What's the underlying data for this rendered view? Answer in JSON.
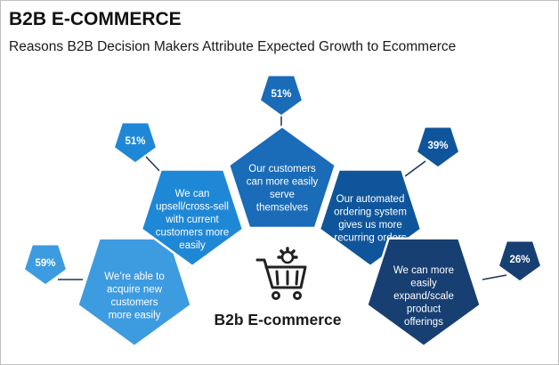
{
  "header": {
    "title": "B2B E-COMMERCE",
    "subtitle": "Reasons B2B Decision Makers Attribute Expected Growth to Ecommerce"
  },
  "center": {
    "label": "B2b E-commerce",
    "icon": "shopping-cart-gear-icon"
  },
  "colors": {
    "c1": "#3d9be0",
    "c2": "#1f88d6",
    "c3": "#1a6bb8",
    "c4": "#0f559b",
    "c5": "#173f72",
    "line": "#1c3553",
    "cart": "#222222"
  },
  "reasons": [
    {
      "percent": "59%",
      "lines": [
        "We’re able to",
        "acquire new",
        "customers",
        "more easily"
      ]
    },
    {
      "percent": "51%",
      "lines": [
        "We can",
        "upsell/cross-sell",
        "with current",
        "customers more",
        "easily"
      ]
    },
    {
      "percent": "51%",
      "lines": [
        "Our customers",
        "can more easily",
        "serve",
        "themselves"
      ]
    },
    {
      "percent": "39%",
      "lines": [
        "Our automated",
        "ordering system",
        "gives us more",
        "recurring orders"
      ]
    },
    {
      "percent": "26%",
      "lines": [
        "We can more",
        "easily",
        "expand/scale",
        "product",
        "offerings"
      ]
    }
  ]
}
